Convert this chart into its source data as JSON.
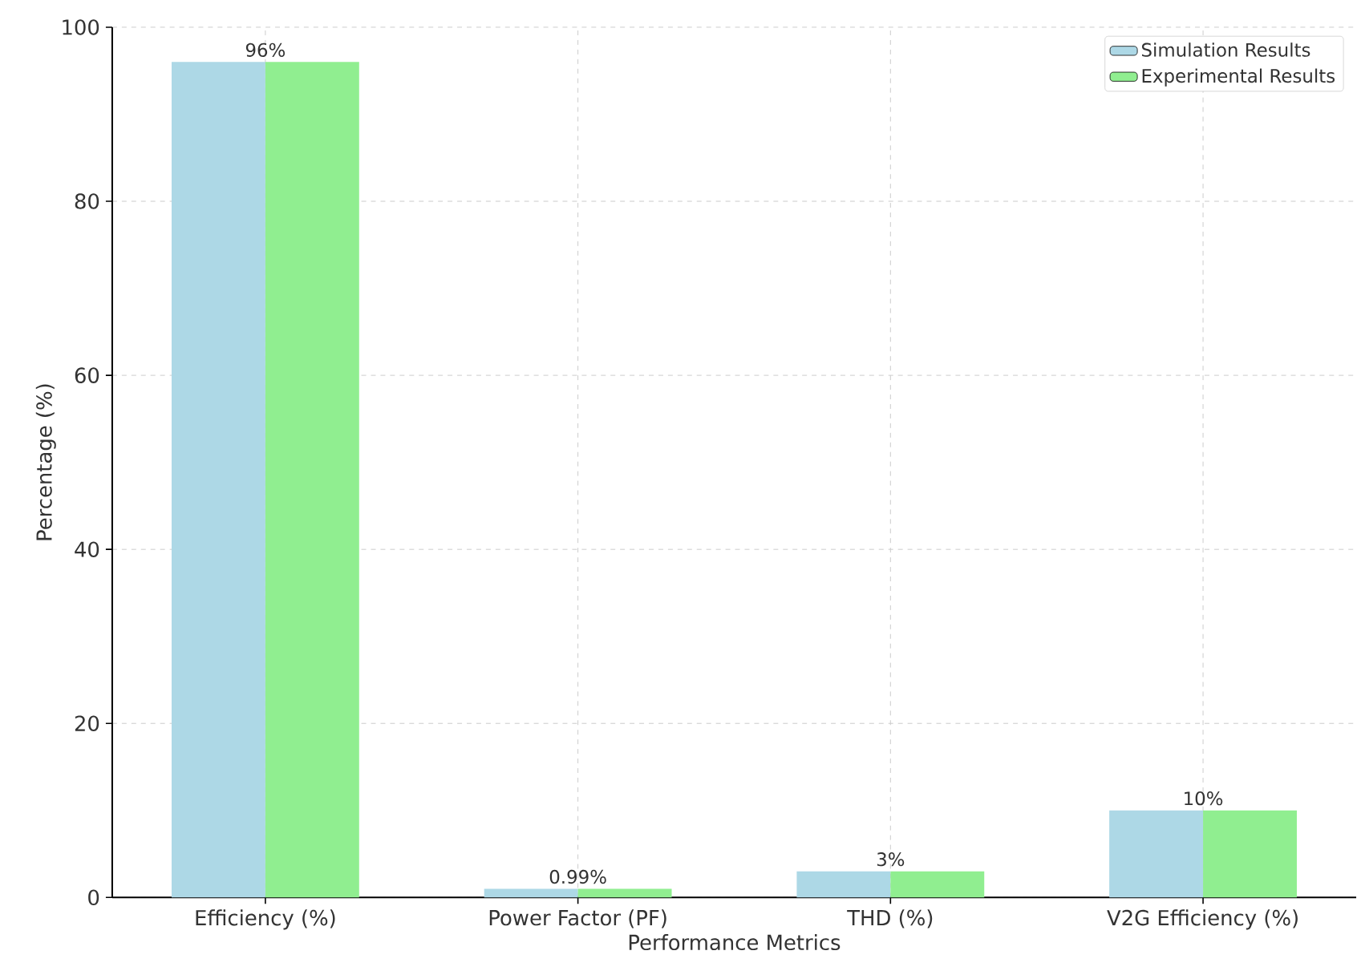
{
  "chart_data": {
    "type": "bar",
    "xlabel": "Performance Metrics",
    "ylabel": "Percentage (%)",
    "categories": [
      "Efficiency (%)",
      "Power Factor (PF)",
      "THD (%)",
      "V2G Efficiency (%)"
    ],
    "series": [
      {
        "name": "Simulation Results",
        "color": "#add8e6",
        "values": [
          96,
          0.99,
          3,
          10
        ],
        "value_labels": [
          "96%",
          "0.99%",
          "3%",
          "10%"
        ]
      },
      {
        "name": "Experimental Results",
        "color": "#90ee90",
        "values": [
          96,
          0.99,
          3,
          10
        ]
      }
    ],
    "ylim": [
      0,
      100
    ],
    "yticks": [
      0,
      20,
      40,
      60,
      80,
      100
    ],
    "grid": true,
    "legend": "top right"
  }
}
